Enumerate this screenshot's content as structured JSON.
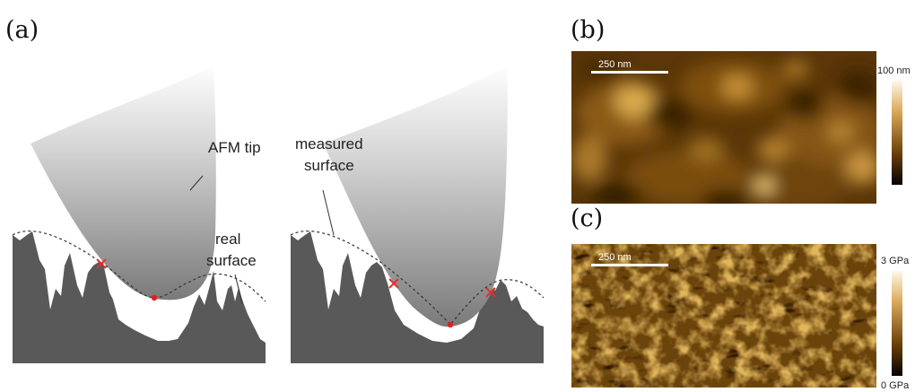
{
  "panels": {
    "a": {
      "label": "(a)"
    },
    "b": {
      "label": "(b)"
    },
    "c": {
      "label": "(c)"
    }
  },
  "diagram_a": {
    "annotations": {
      "afm_tip": "AFM tip",
      "real_surface_line1": "real",
      "real_surface_line2": "surface",
      "measured_surface_line1": "measured",
      "measured_surface_line2": "surface"
    },
    "colors": {
      "surface": "#595959",
      "tip_dark": "#7a7a7a",
      "tip_light": "#ffffff",
      "contact_dot": "#e02020",
      "cross": "#e23030"
    }
  },
  "image_b": {
    "scalebar_label": "250 nm",
    "colorbar_max": "100 nm",
    "colormap": "afmhot"
  },
  "image_c": {
    "scalebar_label": "250 nm",
    "colorbar_max": "3 GPa",
    "colorbar_min": "0 GPa",
    "colormap": "afmhot"
  }
}
